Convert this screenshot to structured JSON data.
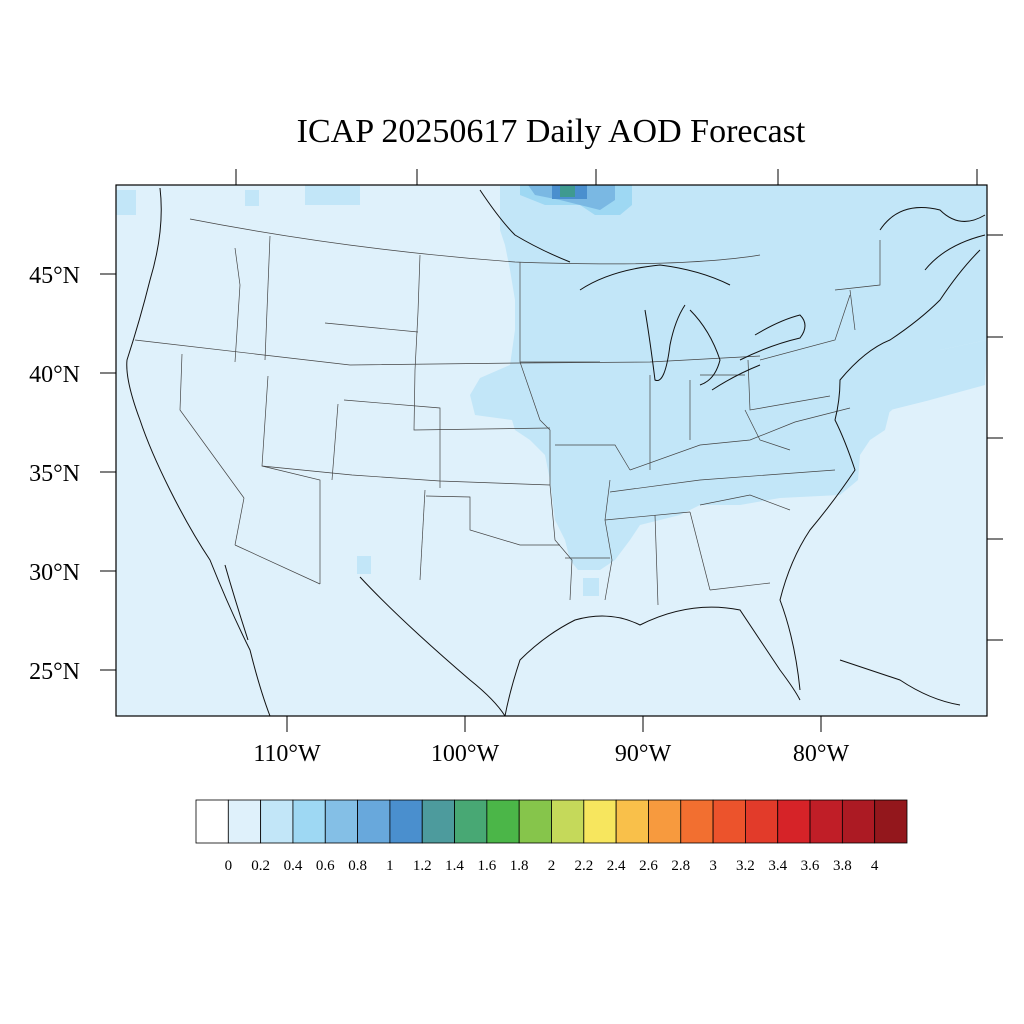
{
  "title": "ICAP 20250617 Daily AOD Forecast",
  "map": {
    "projection": "lambert-conformal",
    "region": "CONUS",
    "lat_labels": [
      "45°N",
      "40°N",
      "35°N",
      "30°N",
      "25°N"
    ],
    "lon_labels": [
      "110°W",
      "100°W",
      "90°W",
      "80°W"
    ],
    "background_color": "#dff1fb",
    "highlight_color": "#c2e6f8",
    "smoke_colors": [
      "#9ed8f3",
      "#7ab8e3",
      "#4a8fce",
      "#3f9a90"
    ]
  },
  "colorbar": {
    "labels": [
      "0",
      "0.2",
      "0.4",
      "0.6",
      "0.8",
      "1",
      "1.2",
      "1.4",
      "1.6",
      "1.8",
      "2",
      "2.2",
      "2.4",
      "2.6",
      "2.8",
      "3",
      "3.2",
      "3.4",
      "3.6",
      "3.8",
      "4"
    ],
    "colors": [
      "#ffffff",
      "#dff1fb",
      "#c2e6f8",
      "#9ed8f3",
      "#84bfe6",
      "#68a8dc",
      "#4a8fce",
      "#4d9b9d",
      "#48a874",
      "#4bb648",
      "#86c54b",
      "#c5d95a",
      "#f7e65e",
      "#f9c04a",
      "#f79a3e",
      "#f26f30",
      "#ec532c",
      "#e23b2a",
      "#d62328",
      "#c01e27",
      "#ac1a23",
      "#93171c"
    ]
  }
}
